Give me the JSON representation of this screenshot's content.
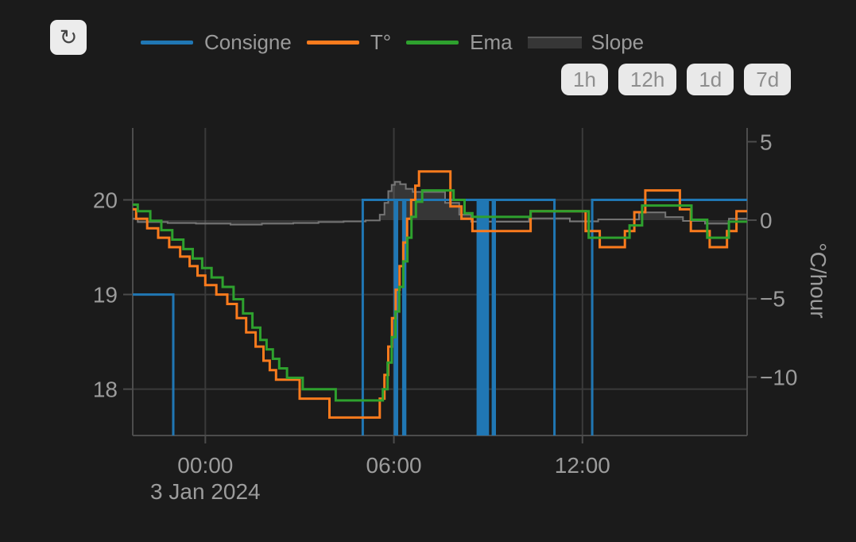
{
  "toolbar": {
    "refresh_icon_glyph": "↻"
  },
  "legend": {
    "items": [
      {
        "key": "consigne",
        "label": "Consigne",
        "swatch": "line",
        "color": "#2077b4"
      },
      {
        "key": "temperature",
        "label": "T°",
        "swatch": "line",
        "color": "#fb7b1d"
      },
      {
        "key": "ema",
        "label": "Ema",
        "swatch": "line",
        "color": "#2ea12e"
      },
      {
        "key": "slope",
        "label": "Slope",
        "swatch": "band",
        "color": "#3a3a3a"
      }
    ]
  },
  "range_buttons": [
    {
      "key": "1h",
      "label": "1h"
    },
    {
      "key": "12h",
      "label": "12h"
    },
    {
      "key": "1d",
      "label": "1d"
    },
    {
      "key": "7d",
      "label": "7d"
    }
  ],
  "chart_data": {
    "type": "line",
    "subtype": "step-hv",
    "grid": true,
    "legend_position": "top",
    "x_axis": {
      "unit": "hours relative to 3 Jan 2024 00:00",
      "range_hours": [
        -2.31,
        17.24
      ],
      "tick_labels": [
        {
          "t": 0,
          "label": "00:00"
        },
        {
          "t": 6,
          "label": "06:00"
        },
        {
          "t": 12,
          "label": "12:00"
        }
      ],
      "date_label": "3 Jan 2024"
    },
    "temp_axis": {
      "side": "left",
      "range": [
        17.51,
        20.76
      ],
      "ticks": [
        {
          "v": 20,
          "label": "20"
        },
        {
          "v": 19,
          "label": "19"
        },
        {
          "v": 18,
          "label": "18"
        }
      ]
    },
    "slope_axis": {
      "side": "right",
      "title": "°C/hour",
      "range": [
        -13.73,
        5.88
      ],
      "ticks": [
        {
          "v": 5,
          "label": "5"
        },
        {
          "v": 0,
          "label": "0"
        },
        {
          "v": -5,
          "label": "−5"
        },
        {
          "v": -10,
          "label": "−10"
        }
      ]
    },
    "series": [
      {
        "key": "consigne",
        "name": "Consigne",
        "axis": "temp",
        "color": "#2077b4",
        "style": "step-line",
        "note": "setpoint; low periods drop below visible range (clipped)",
        "points": [
          [
            -2.31,
            19
          ],
          [
            -1.02,
            16.5
          ],
          [
            5.01,
            20
          ],
          [
            6.03,
            16.5
          ],
          [
            6.1,
            20
          ],
          [
            6.3,
            16.5
          ],
          [
            6.36,
            20
          ],
          [
            8.67,
            16.5
          ],
          [
            8.72,
            20
          ],
          [
            8.76,
            16.5
          ],
          [
            8.81,
            20
          ],
          [
            8.85,
            16.5
          ],
          [
            8.9,
            20
          ],
          [
            8.94,
            16.5
          ],
          [
            8.99,
            20
          ],
          [
            9.15,
            16.5
          ],
          [
            9.21,
            20
          ],
          [
            11.11,
            16.5
          ],
          [
            12.31,
            20
          ]
        ]
      },
      {
        "key": "temperature",
        "name": "T°",
        "axis": "temp",
        "color": "#fb7b1d",
        "style": "step-line",
        "points": [
          [
            -2.31,
            19.9
          ],
          [
            -2.2,
            19.8
          ],
          [
            -1.85,
            19.7
          ],
          [
            -1.5,
            19.6
          ],
          [
            -1.15,
            19.5
          ],
          [
            -0.8,
            19.4
          ],
          [
            -0.5,
            19.3
          ],
          [
            -0.25,
            19.2
          ],
          [
            0,
            19.1
          ],
          [
            0.35,
            19
          ],
          [
            0.7,
            18.9
          ],
          [
            1,
            18.75
          ],
          [
            1.3,
            18.6
          ],
          [
            1.6,
            18.45
          ],
          [
            1.85,
            18.3
          ],
          [
            2.05,
            18.2
          ],
          [
            2.25,
            18.1
          ],
          [
            3,
            17.9
          ],
          [
            3.95,
            17.7
          ],
          [
            5.55,
            17.9
          ],
          [
            5.7,
            18.15
          ],
          [
            5.82,
            18.45
          ],
          [
            5.94,
            18.75
          ],
          [
            6.06,
            19.05
          ],
          [
            6.18,
            19.3
          ],
          [
            6.3,
            19.55
          ],
          [
            6.42,
            19.8
          ],
          [
            6.55,
            20
          ],
          [
            6.68,
            20.15
          ],
          [
            6.8,
            20.3
          ],
          [
            7.8,
            19.93
          ],
          [
            8.15,
            19.8
          ],
          [
            8.5,
            19.67
          ],
          [
            10.35,
            19.88
          ],
          [
            12.1,
            19.67
          ],
          [
            12.55,
            19.5
          ],
          [
            13.35,
            19.67
          ],
          [
            13.65,
            19.87
          ],
          [
            14,
            20.1
          ],
          [
            15.1,
            19.9
          ],
          [
            15.45,
            19.67
          ],
          [
            16.05,
            19.5
          ],
          [
            16.6,
            19.67
          ],
          [
            16.9,
            19.88
          ]
        ]
      },
      {
        "key": "ema",
        "name": "Ema",
        "axis": "temp",
        "color": "#2ea12e",
        "style": "step-line",
        "points": [
          [
            -2.31,
            19.95
          ],
          [
            -2.15,
            19.88
          ],
          [
            -1.75,
            19.78
          ],
          [
            -1.4,
            19.68
          ],
          [
            -1.05,
            19.58
          ],
          [
            -0.7,
            19.48
          ],
          [
            -0.4,
            19.38
          ],
          [
            -0.1,
            19.28
          ],
          [
            0.2,
            19.18
          ],
          [
            0.55,
            19.08
          ],
          [
            0.9,
            18.95
          ],
          [
            1.2,
            18.8
          ],
          [
            1.5,
            18.65
          ],
          [
            1.75,
            18.52
          ],
          [
            1.95,
            18.42
          ],
          [
            2.15,
            18.32
          ],
          [
            2.35,
            18.22
          ],
          [
            2.6,
            18.12
          ],
          [
            3.1,
            18
          ],
          [
            4.15,
            17.88
          ],
          [
            5.65,
            18
          ],
          [
            5.8,
            18.28
          ],
          [
            5.93,
            18.55
          ],
          [
            6.05,
            18.82
          ],
          [
            6.17,
            19.08
          ],
          [
            6.3,
            19.35
          ],
          [
            6.43,
            19.6
          ],
          [
            6.56,
            19.82
          ],
          [
            6.7,
            19.98
          ],
          [
            6.9,
            20.1
          ],
          [
            7.9,
            20
          ],
          [
            8.25,
            19.86
          ],
          [
            8.5,
            19.82
          ],
          [
            10.35,
            19.88
          ],
          [
            12.2,
            19.6
          ],
          [
            13.5,
            19.73
          ],
          [
            13.9,
            19.94
          ],
          [
            15.47,
            19.79
          ],
          [
            15.97,
            19.6
          ],
          [
            16.66,
            19.77
          ]
        ]
      },
      {
        "key": "slope",
        "name": "Slope",
        "axis": "slope",
        "color": "#767676",
        "style": "step-area",
        "fill": "rgba(150,150,150,0.22)",
        "points": [
          [
            -2.31,
            0.1
          ],
          [
            -2.15,
            -0.12
          ],
          [
            -1.2,
            -0.18
          ],
          [
            -0.3,
            -0.22
          ],
          [
            0.8,
            -0.28
          ],
          [
            1.8,
            -0.22
          ],
          [
            2.8,
            -0.18
          ],
          [
            3.6,
            -0.12
          ],
          [
            4.4,
            -0.08
          ],
          [
            5.1,
            -0.02
          ],
          [
            5.55,
            0.35
          ],
          [
            5.7,
            1.1
          ],
          [
            5.82,
            1.85
          ],
          [
            5.93,
            2.25
          ],
          [
            6.03,
            2.45
          ],
          [
            6.2,
            2.3
          ],
          [
            6.38,
            2
          ],
          [
            6.6,
            1.8
          ],
          [
            7.63,
            1.1
          ],
          [
            8.08,
            0.35
          ],
          [
            8.46,
            -0.1
          ],
          [
            10.3,
            0.12
          ],
          [
            11.6,
            -0.08
          ],
          [
            12.5,
            0.05
          ],
          [
            13.8,
            0.5
          ],
          [
            14.64,
            0.2
          ],
          [
            15.2,
            -0.05
          ],
          [
            15.9,
            -0.22
          ],
          [
            16.66,
            0.1
          ]
        ]
      }
    ],
    "colors": {
      "background": "#1b1b1b",
      "gridline": "#3a3a3a",
      "axis_line": "#4c4c4c",
      "tick_text": "#9c9c9c",
      "button_bg": "#e9e9e9",
      "button_text": "#8e8e8e"
    }
  }
}
